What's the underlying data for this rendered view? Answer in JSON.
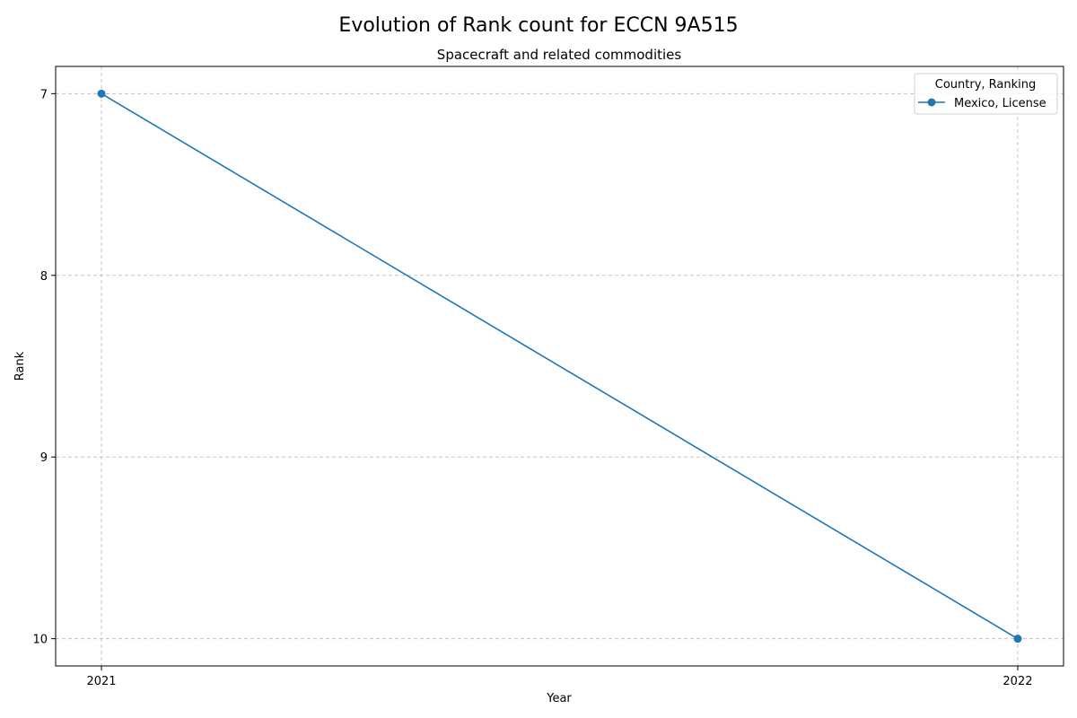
{
  "chart_data": {
    "type": "line",
    "title": "Evolution of Rank count for ECCN 9A515",
    "subtitle": "Spacecraft and related commodities",
    "xlabel": "Year",
    "ylabel": "Rank",
    "x": [
      2021,
      2022
    ],
    "x_tick_labels": [
      "2021",
      "2022"
    ],
    "y_ticks": [
      7,
      8,
      9,
      10
    ],
    "y_tick_labels": [
      "7",
      "8",
      "9",
      "10"
    ],
    "ylim": [
      10.15,
      6.85
    ],
    "y_inverted": true,
    "grid": true,
    "legend": {
      "title": "Country, Ranking",
      "placement": "top-right"
    },
    "series": [
      {
        "name": "Mexico, License",
        "color": "#1f77b4",
        "marker": "circle",
        "values": [
          7,
          10
        ]
      }
    ]
  }
}
